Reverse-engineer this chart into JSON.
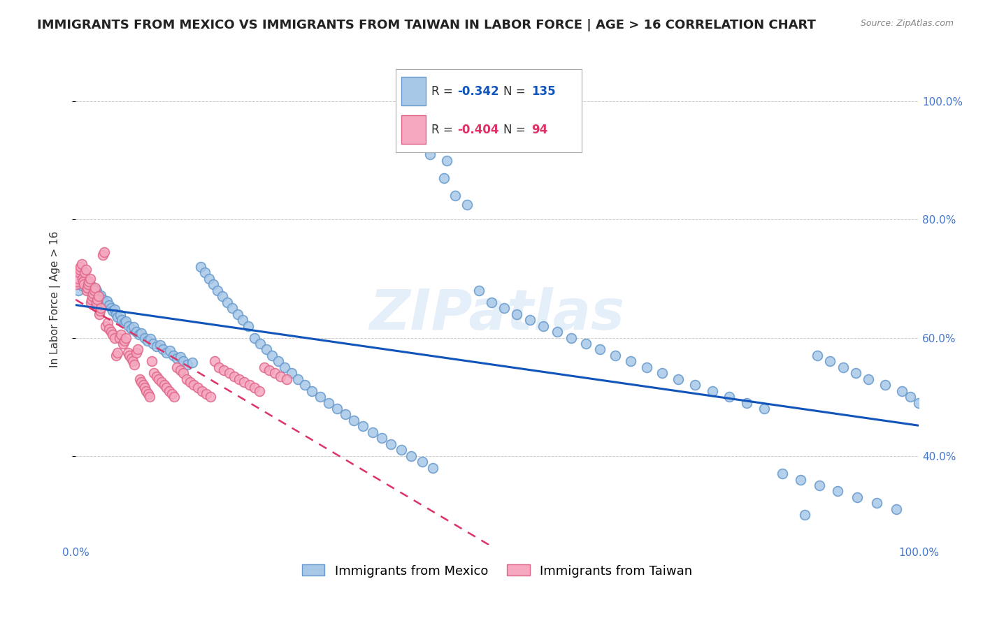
{
  "title": "IMMIGRANTS FROM MEXICO VS IMMIGRANTS FROM TAIWAN IN LABOR FORCE | AGE > 16 CORRELATION CHART",
  "source": "Source: ZipAtlas.com",
  "ylabel": "In Labor Force | Age > 16",
  "xlim": [
    0.0,
    1.0
  ],
  "ylim": [
    0.25,
    1.08
  ],
  "yticks": [
    0.4,
    0.6,
    0.8,
    1.0
  ],
  "ytick_labels": [
    "40.0%",
    "60.0%",
    "80.0%",
    "100.0%"
  ],
  "xticks": [
    0.0,
    0.2,
    0.4,
    0.6,
    0.8,
    1.0
  ],
  "xtick_labels": [
    "0.0%",
    "",
    "",
    "",
    "",
    "100.0%"
  ],
  "mexico_color": "#a8c8e8",
  "mexico_edge": "#6699cc",
  "taiwan_color": "#f5a8c0",
  "taiwan_edge": "#e06688",
  "regression_mexico_color": "#1155bb",
  "regression_taiwan_color": "#dd3366",
  "R_mexico": -0.342,
  "N_mexico": 135,
  "R_taiwan": -0.404,
  "N_taiwan": 94,
  "mexico_x": [
    0.003,
    0.005,
    0.007,
    0.008,
    0.009,
    0.01,
    0.011,
    0.012,
    0.013,
    0.014,
    0.015,
    0.016,
    0.017,
    0.018,
    0.019,
    0.02,
    0.021,
    0.022,
    0.023,
    0.024,
    0.025,
    0.027,
    0.028,
    0.03,
    0.032,
    0.033,
    0.035,
    0.037,
    0.04,
    0.042,
    0.044,
    0.046,
    0.048,
    0.05,
    0.053,
    0.055,
    0.058,
    0.06,
    0.063,
    0.066,
    0.069,
    0.072,
    0.075,
    0.078,
    0.082,
    0.085,
    0.089,
    0.092,
    0.096,
    0.1,
    0.104,
    0.108,
    0.112,
    0.116,
    0.12,
    0.124,
    0.128,
    0.133,
    0.138,
    0.148,
    0.153,
    0.158,
    0.163,
    0.168,
    0.174,
    0.18,
    0.186,
    0.192,
    0.198,
    0.205,
    0.212,
    0.219,
    0.226,
    0.233,
    0.24,
    0.248,
    0.256,
    0.264,
    0.272,
    0.28,
    0.29,
    0.3,
    0.31,
    0.32,
    0.33,
    0.341,
    0.352,
    0.363,
    0.374,
    0.386,
    0.398,
    0.411,
    0.424,
    0.437,
    0.45,
    0.464,
    0.478,
    0.493,
    0.42,
    0.44,
    0.508,
    0.523,
    0.539,
    0.555,
    0.571,
    0.588,
    0.605,
    0.622,
    0.64,
    0.658,
    0.677,
    0.696,
    0.715,
    0.735,
    0.755,
    0.775,
    0.796,
    0.817,
    0.838,
    0.86,
    0.882,
    0.904,
    0.927,
    0.95,
    0.973,
    0.865,
    0.88,
    0.895,
    0.91,
    0.925,
    0.94,
    0.96,
    0.98,
    0.99,
    1.0
  ],
  "mexico_y": [
    0.68,
    0.69,
    0.695,
    0.688,
    0.692,
    0.7,
    0.705,
    0.698,
    0.693,
    0.688,
    0.682,
    0.685,
    0.69,
    0.678,
    0.686,
    0.68,
    0.685,
    0.678,
    0.682,
    0.675,
    0.68,
    0.672,
    0.668,
    0.672,
    0.665,
    0.66,
    0.658,
    0.662,
    0.655,
    0.65,
    0.645,
    0.648,
    0.64,
    0.635,
    0.638,
    0.63,
    0.625,
    0.628,
    0.62,
    0.615,
    0.618,
    0.61,
    0.605,
    0.608,
    0.6,
    0.595,
    0.598,
    0.59,
    0.585,
    0.588,
    0.58,
    0.575,
    0.578,
    0.57,
    0.565,
    0.568,
    0.56,
    0.555,
    0.558,
    0.72,
    0.71,
    0.7,
    0.69,
    0.68,
    0.67,
    0.66,
    0.65,
    0.64,
    0.63,
    0.62,
    0.6,
    0.59,
    0.58,
    0.57,
    0.56,
    0.55,
    0.54,
    0.53,
    0.52,
    0.51,
    0.5,
    0.49,
    0.48,
    0.47,
    0.46,
    0.45,
    0.44,
    0.43,
    0.42,
    0.41,
    0.4,
    0.39,
    0.38,
    0.87,
    0.84,
    0.825,
    0.68,
    0.66,
    0.91,
    0.9,
    0.65,
    0.64,
    0.63,
    0.62,
    0.61,
    0.6,
    0.59,
    0.58,
    0.57,
    0.56,
    0.55,
    0.54,
    0.53,
    0.52,
    0.51,
    0.5,
    0.49,
    0.48,
    0.37,
    0.36,
    0.35,
    0.34,
    0.33,
    0.32,
    0.31,
    0.3,
    0.57,
    0.56,
    0.55,
    0.54,
    0.53,
    0.52,
    0.51,
    0.5,
    0.49
  ],
  "taiwan_x": [
    0.001,
    0.002,
    0.003,
    0.004,
    0.005,
    0.006,
    0.007,
    0.008,
    0.009,
    0.01,
    0.011,
    0.012,
    0.013,
    0.014,
    0.015,
    0.016,
    0.017,
    0.018,
    0.019,
    0.02,
    0.021,
    0.022,
    0.023,
    0.024,
    0.025,
    0.026,
    0.027,
    0.028,
    0.029,
    0.03,
    0.032,
    0.034,
    0.036,
    0.038,
    0.04,
    0.042,
    0.044,
    0.046,
    0.048,
    0.05,
    0.052,
    0.054,
    0.056,
    0.058,
    0.06,
    0.062,
    0.064,
    0.066,
    0.068,
    0.07,
    0.072,
    0.074,
    0.076,
    0.078,
    0.08,
    0.082,
    0.084,
    0.086,
    0.088,
    0.09,
    0.093,
    0.096,
    0.099,
    0.102,
    0.105,
    0.108,
    0.111,
    0.114,
    0.117,
    0.12,
    0.124,
    0.128,
    0.132,
    0.136,
    0.14,
    0.145,
    0.15,
    0.155,
    0.16,
    0.165,
    0.17,
    0.176,
    0.182,
    0.188,
    0.194,
    0.2,
    0.206,
    0.212,
    0.218,
    0.224,
    0.23,
    0.236,
    0.243,
    0.25
  ],
  "taiwan_y": [
    0.69,
    0.695,
    0.7,
    0.71,
    0.715,
    0.72,
    0.725,
    0.7,
    0.695,
    0.69,
    0.71,
    0.715,
    0.68,
    0.685,
    0.69,
    0.695,
    0.7,
    0.66,
    0.665,
    0.67,
    0.675,
    0.68,
    0.685,
    0.655,
    0.66,
    0.665,
    0.67,
    0.64,
    0.645,
    0.65,
    0.74,
    0.745,
    0.62,
    0.625,
    0.615,
    0.61,
    0.605,
    0.6,
    0.57,
    0.575,
    0.6,
    0.605,
    0.59,
    0.595,
    0.6,
    0.575,
    0.57,
    0.565,
    0.56,
    0.555,
    0.575,
    0.58,
    0.53,
    0.525,
    0.52,
    0.515,
    0.51,
    0.505,
    0.5,
    0.56,
    0.54,
    0.535,
    0.53,
    0.525,
    0.52,
    0.515,
    0.51,
    0.505,
    0.5,
    0.55,
    0.545,
    0.54,
    0.53,
    0.525,
    0.52,
    0.515,
    0.51,
    0.505,
    0.5,
    0.56,
    0.55,
    0.545,
    0.54,
    0.535,
    0.53,
    0.525,
    0.52,
    0.515,
    0.51,
    0.55,
    0.545,
    0.54,
    0.535,
    0.53
  ],
  "watermark": "ZIPatlas",
  "background_color": "#ffffff",
  "grid_color": "#cccccc",
  "title_color": "#222222",
  "axis_color": "#4477cc",
  "title_fontsize": 13,
  "axis_label_fontsize": 11,
  "tick_fontsize": 11,
  "legend_fontsize": 13,
  "marker_size": 10,
  "marker_linewidth": 1.2
}
